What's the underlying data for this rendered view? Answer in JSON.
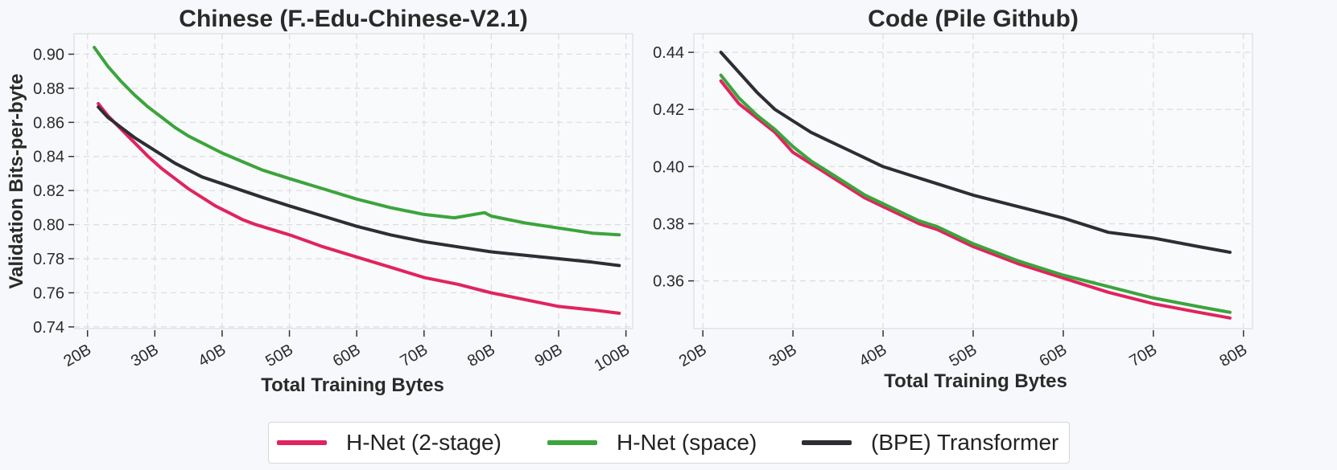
{
  "chart_data": [
    {
      "type": "line",
      "title": "Chinese (F.-Edu-Chinese-V2.1)",
      "xlabel": "Total Training Bytes",
      "ylabel": "Validation Bits-per-byte",
      "xlim": [
        18,
        101
      ],
      "ylim": [
        0.739,
        0.912
      ],
      "xticks": [
        20,
        30,
        40,
        50,
        60,
        70,
        80,
        90,
        100
      ],
      "xtick_labels": [
        "20B",
        "30B",
        "40B",
        "50B",
        "60B",
        "70B",
        "80B",
        "90B",
        "100B"
      ],
      "yticks": [
        0.74,
        0.76,
        0.78,
        0.8,
        0.82,
        0.84,
        0.86,
        0.88,
        0.9
      ],
      "ytick_labels": [
        "0.74",
        "0.76",
        "0.78",
        "0.80",
        "0.82",
        "0.84",
        "0.86",
        "0.88",
        "0.90"
      ],
      "grid": true,
      "series": [
        {
          "name": "H-Net (2-stage)",
          "color": "#e0245e",
          "x": [
            21.6,
            23,
            25,
            27,
            29,
            31,
            33,
            35,
            37,
            39,
            41,
            43,
            45,
            50,
            55,
            60,
            65,
            70,
            75,
            80,
            85,
            90,
            95,
            99
          ],
          "y": [
            0.871,
            0.864,
            0.856,
            0.848,
            0.84,
            0.833,
            0.827,
            0.821,
            0.816,
            0.811,
            0.807,
            0.803,
            0.8,
            0.794,
            0.787,
            0.781,
            0.775,
            0.769,
            0.765,
            0.76,
            0.756,
            0.752,
            0.75,
            0.748
          ]
        },
        {
          "name": "H-Net (space)",
          "color": "#3ca43c",
          "x": [
            21,
            23,
            25,
            27,
            29,
            31,
            33,
            35,
            37,
            40,
            43,
            46,
            50,
            55,
            60,
            65,
            70,
            74.5,
            79,
            80,
            85,
            90,
            95,
            99
          ],
          "y": [
            0.904,
            0.893,
            0.884,
            0.876,
            0.869,
            0.863,
            0.857,
            0.852,
            0.848,
            0.842,
            0.837,
            0.832,
            0.827,
            0.821,
            0.815,
            0.81,
            0.806,
            0.804,
            0.807,
            0.805,
            0.801,
            0.798,
            0.795,
            0.794
          ]
        },
        {
          "name": "(BPE) Transformer",
          "color": "#2d2d34",
          "x": [
            21.6,
            23,
            25,
            27,
            29,
            31,
            33,
            35,
            37,
            40,
            43,
            46,
            50,
            55,
            60,
            65,
            70,
            75,
            80,
            85,
            90,
            95,
            99
          ],
          "y": [
            0.869,
            0.863,
            0.857,
            0.851,
            0.846,
            0.841,
            0.836,
            0.832,
            0.828,
            0.824,
            0.82,
            0.816,
            0.811,
            0.805,
            0.799,
            0.794,
            0.79,
            0.787,
            0.784,
            0.782,
            0.78,
            0.778,
            0.776
          ]
        }
      ]
    },
    {
      "type": "line",
      "title": "Code (Pile Github)",
      "xlabel": "Total Training Bytes",
      "ylabel": "",
      "xlim": [
        19,
        81
      ],
      "ylim": [
        0.3433,
        0.4465
      ],
      "xticks": [
        20,
        30,
        40,
        50,
        60,
        70,
        80
      ],
      "xtick_labels": [
        "20B",
        "30B",
        "40B",
        "50B",
        "60B",
        "70B",
        "80B"
      ],
      "yticks": [
        0.36,
        0.38,
        0.4,
        0.42,
        0.44
      ],
      "ytick_labels": [
        "0.36",
        "0.38",
        "0.40",
        "0.42",
        "0.44"
      ],
      "grid": true,
      "series": [
        {
          "name": "H-Net (2-stage)",
          "color": "#e0245e",
          "x": [
            22,
            24,
            26,
            28,
            30,
            32,
            34,
            36,
            38,
            40,
            42,
            44,
            46,
            50,
            55,
            60,
            65,
            70,
            75,
            78.5
          ],
          "y": [
            0.43,
            0.422,
            0.417,
            0.412,
            0.405,
            0.401,
            0.397,
            0.393,
            0.389,
            0.386,
            0.383,
            0.38,
            0.378,
            0.372,
            0.366,
            0.361,
            0.356,
            0.352,
            0.349,
            0.347
          ]
        },
        {
          "name": "H-Net (space)",
          "color": "#3ca43c",
          "x": [
            22,
            24,
            26,
            28,
            30,
            32,
            34,
            36,
            38,
            40,
            42,
            44,
            46,
            50,
            55,
            60,
            65,
            70,
            75,
            78.5
          ],
          "y": [
            0.432,
            0.424,
            0.418,
            0.413,
            0.407,
            0.402,
            0.398,
            0.394,
            0.39,
            0.387,
            0.384,
            0.381,
            0.379,
            0.373,
            0.367,
            0.362,
            0.358,
            0.354,
            0.351,
            0.349
          ]
        },
        {
          "name": "(BPE) Transformer",
          "color": "#2d2d34",
          "x": [
            22,
            24,
            26,
            28,
            30,
            32,
            34,
            36,
            38,
            40,
            42,
            44,
            46,
            50,
            55,
            60,
            65,
            70,
            75,
            78.5
          ],
          "y": [
            0.44,
            0.433,
            0.426,
            0.42,
            0.416,
            0.412,
            0.409,
            0.406,
            0.403,
            0.4,
            0.398,
            0.396,
            0.394,
            0.39,
            0.386,
            0.382,
            0.377,
            0.375,
            0.372,
            0.37
          ]
        }
      ]
    }
  ],
  "legend": {
    "items": [
      {
        "label": "H-Net (2-stage)",
        "color": "#e0245e"
      },
      {
        "label": "H-Net (space)",
        "color": "#3ca43c"
      },
      {
        "label": "(BPE) Transformer",
        "color": "#2d2d34"
      }
    ]
  }
}
